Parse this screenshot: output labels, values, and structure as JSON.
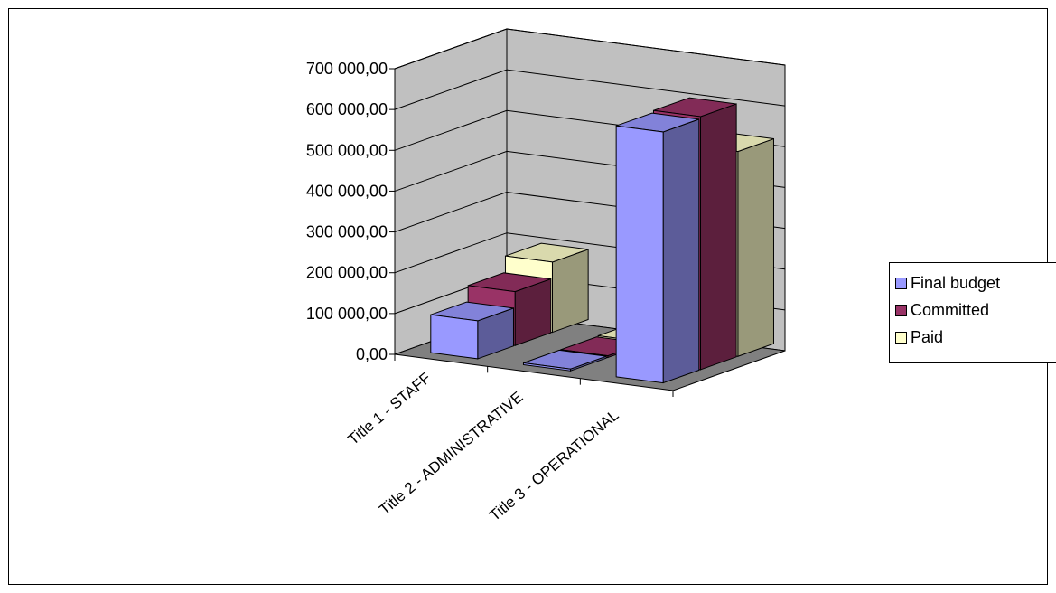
{
  "chart_data": {
    "type": "bar",
    "subtype": "3d-clustered-column",
    "categories": [
      "Title 1 - STAFF",
      "Title 2 - ADMINISTRATIVE",
      "Title 3 - OPERATIONAL"
    ],
    "series": [
      {
        "name": "Final budget",
        "color": "#9999ff",
        "values": [
          93000,
          2000,
          615000
        ]
      },
      {
        "name": "Committed",
        "color": "#993366",
        "values": [
          132000,
          4000,
          620000
        ]
      },
      {
        "name": "Paid",
        "color": "#ffffcc",
        "values": [
          172000,
          6000,
          502000
        ]
      }
    ],
    "yticks": [
      "0,00",
      "100 000,00",
      "200 000,00",
      "300 000,00",
      "400 000,00",
      "500 000,00",
      "600 000,00",
      "700 000,00"
    ],
    "ylim": [
      0,
      700000
    ],
    "grid": true,
    "legend_position": "right"
  },
  "legend": {
    "items": [
      {
        "label": "Final budget",
        "color": "#9999ff"
      },
      {
        "label": "Committed",
        "color": "#993366"
      },
      {
        "label": "Paid",
        "color": "#ffffcc"
      }
    ]
  }
}
